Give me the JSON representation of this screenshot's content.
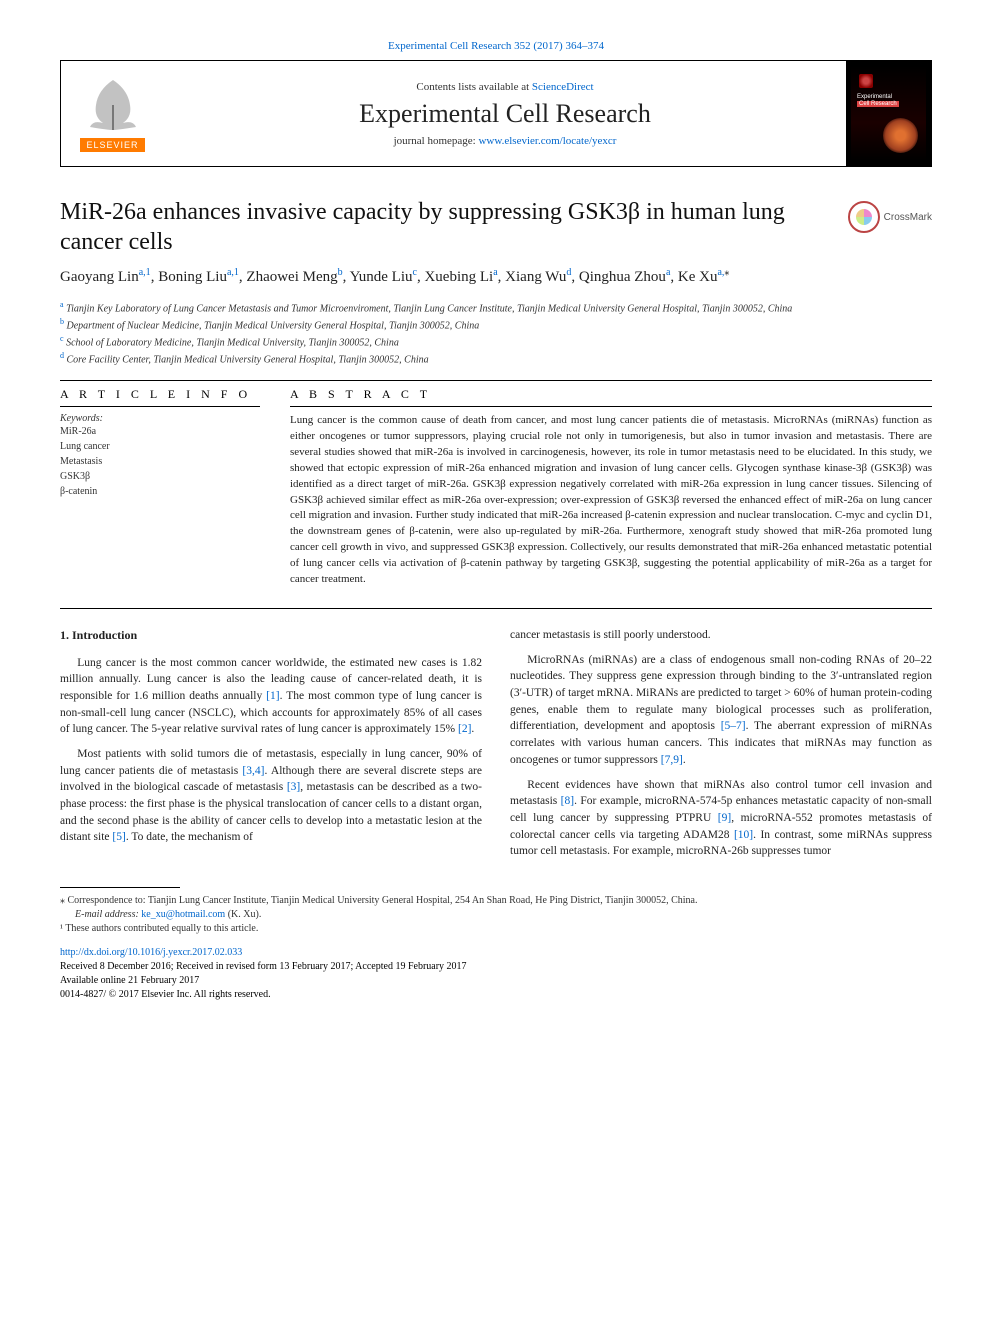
{
  "meta": {
    "top_citation": "Experimental Cell Research 352 (2017) 364–374",
    "contents_line_prefix": "Contents lists available at ",
    "contents_line_link": "ScienceDirect",
    "journal_name": "Experimental Cell Research",
    "homepage_prefix": "journal homepage: ",
    "homepage_link": "www.elsevier.com/locate/yexcr",
    "elsevier_label": "ELSEVIER",
    "cover_text_1": "Experimental",
    "cover_text_2": "Cell Research",
    "crossmark_label": "CrossMark"
  },
  "article": {
    "title": "MiR-26a enhances invasive capacity by suppressing GSK3β in human lung cancer cells",
    "authors_html": "Gaoyang Lin<sup>a,1</sup>, Boning Liu<sup>a,1</sup>, Zhaowei Meng<sup>b</sup>, Yunde Liu<sup>c</sup>, Xuebing Li<sup>a</sup>, Xiang Wu<sup>d</sup>, Qinghua Zhou<sup>a</sup>, Ke Xu<sup>a,</sup><sup class=\"black\">⁎</sup>",
    "affiliations": {
      "a": "Tianjin Key Laboratory of Lung Cancer Metastasis and Tumor Microenviroment, Tianjin Lung Cancer Institute, Tianjin Medical University General Hospital, Tianjin 300052, China",
      "b": "Department of Nuclear Medicine, Tianjin Medical University General Hospital, Tianjin 300052, China",
      "c": "School of Laboratory Medicine, Tianjin Medical University, Tianjin 300052, China",
      "d": "Core Facility Center, Tianjin Medical University General Hospital, Tianjin 300052, China"
    }
  },
  "info": {
    "heading_info": "A R T I C L E  I N F O",
    "heading_abstract": "A B S T R A C T",
    "keywords_label": "Keywords:",
    "keywords": [
      "MiR-26a",
      "Lung cancer",
      "Metastasis",
      "GSK3β",
      "β-catenin"
    ]
  },
  "abstract": "Lung cancer is the common cause of death from cancer, and most lung cancer patients die of metastasis. MicroRNAs (miRNAs) function as either oncogenes or tumor suppressors, playing crucial role not only in tumorigenesis, but also in tumor invasion and metastasis. There are several studies showed that miR-26a is involved in carcinogenesis, however, its role in tumor metastasis need to be elucidated. In this study, we showed that ectopic expression of miR-26a enhanced migration and invasion of lung cancer cells. Glycogen synthase kinase-3β (GSK3β) was identified as a direct target of miR-26a. GSK3β expression negatively correlated with miR-26a expression in lung cancer tissues. Silencing of GSK3β achieved similar effect as miR-26a over-expression; over-expression of GSK3β reversed the enhanced effect of miR-26a on lung cancer cell migration and invasion. Further study indicated that miR-26a increased β-catenin expression and nuclear translocation. C-myc and cyclin D1, the downstream genes of β-catenin, were also up-regulated by miR-26a. Furthermore, xenograft study showed that miR-26a promoted lung cancer cell growth in vivo, and suppressed GSK3β expression. Collectively, our results demonstrated that miR-26a enhanced metastatic potential of lung cancer cells via activation of β-catenin pathway by targeting GSK3β, suggesting the potential applicability of miR-26a as a target for cancer treatment.",
  "body": {
    "intro_heading": "1. Introduction",
    "p1": "Lung cancer is the most common cancer worldwide, the estimated new cases is 1.82 million annually. Lung cancer is also the leading cause of cancer-related death, it is responsible for 1.6 million deaths annually [1]. The most common type of lung cancer is non-small-cell lung cancer (NSCLC), which accounts for approximately 85% of all cases of lung cancer. The 5-year relative survival rates of lung cancer is approximately 15% [2].",
    "p2": "Most patients with solid tumors die of metastasis, especially in lung cancer, 90% of lung cancer patients die of metastasis [3,4]. Although there are several discrete steps are involved in the biological cascade of metastasis [3], metastasis can be described as a two-phase process: the first phase is the physical translocation of cancer cells to a distant organ, and the second phase is the ability of cancer cells to develop into a metastatic lesion at the distant site [5]. To date, the mechanism of",
    "p3": "cancer metastasis is still poorly understood.",
    "p4": "MicroRNAs (miRNAs) are a class of endogenous small non-coding RNAs of 20–22 nucleotides. They suppress gene expression through binding to the 3′-untranslated region (3′-UTR) of target mRNA. MiRANs are predicted to target > 60% of human protein-coding genes, enable them to regulate many biological processes such as proliferation, differentiation, development and apoptosis [5–7]. The aberrant expression of miRNAs correlates with various human cancers. This indicates that miRNAs may function as oncogenes or tumor suppressors [7,9].",
    "p5": "Recent evidences have shown that miRNAs also control tumor cell invasion and metastasis [8]. For example, microRNA-574-5p enhances metastatic capacity of non-small cell lung cancer by suppressing PTPRU [9], microRNA-552 promotes metastasis of colorectal cancer cells via targeting ADAM28 [10]. In contrast, some miRNAs suppress tumor cell metastasis. For example, microRNA-26b suppresses tumor"
  },
  "footnotes": {
    "corr": "⁎ Correspondence to: Tianjin Lung Cancer Institute, Tianjin Medical University General Hospital, 254 An Shan Road, He Ping District, Tianjin 300052, China.",
    "email_label": "E-mail address: ",
    "email": "ke_xu@hotmail.com",
    "email_tail": " (K. Xu).",
    "equal": "¹ These authors contributed equally to this article."
  },
  "doi": {
    "link": "http://dx.doi.org/10.1016/j.yexcr.2017.02.033",
    "received": "Received 8 December 2016; Received in revised form 13 February 2017; Accepted 19 February 2017",
    "available": "Available online 21 February 2017",
    "issn": "0014-4827/ © 2017 Elsevier Inc. All rights reserved."
  },
  "refs": {
    "r1": "[1]",
    "r2": "[2]",
    "r34": "[3,4]",
    "r3": "[3]",
    "r5": "[5]",
    "r57": "[5–7]",
    "r79": "[7,9]",
    "r8": "[8]",
    "r9": "[9]",
    "r10": "[10]"
  }
}
